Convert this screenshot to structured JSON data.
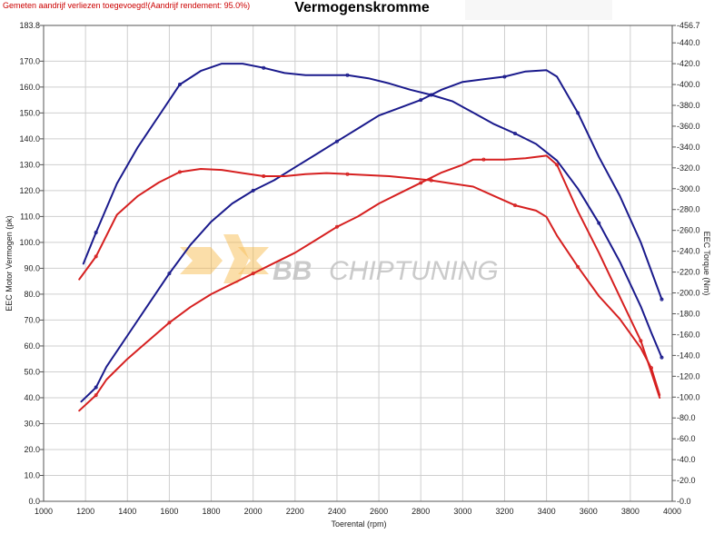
{
  "header": {
    "note": "Gemeten aandrijf verliezen toegevoegd!(Aandrijf rendement: 95.0%)",
    "title": "Vermogenskromme"
  },
  "watermark": {
    "brand_bold": "BB",
    "brand_light": "CHIPTUNING"
  },
  "colors": {
    "tuned": "#1a1a8c",
    "stock": "#d62020",
    "grid": "#cfcfcf",
    "watermark": "#f5b53c"
  },
  "chart_data": {
    "type": "line",
    "title": "Vermogenskromme",
    "xlabel": "Toerental (rpm)",
    "ylabel_left": "EEC Motor Vermogen (pk)",
    "ylabel_right": "EEC Torque (Nm)",
    "xlim": [
      1000,
      4000
    ],
    "ylim_left": [
      0,
      183.8
    ],
    "ylim_right": [
      0,
      456.7
    ],
    "grid": true,
    "x_ticks": [
      "1000",
      "1200",
      "1400",
      "1600",
      "1800",
      "2000",
      "2200",
      "2400",
      "2600",
      "2800",
      "3000",
      "3200",
      "3400",
      "3600",
      "3800",
      "4000"
    ],
    "y_left_ticks": [
      "0.0",
      "10.0",
      "20.0",
      "30.0",
      "40.0",
      "50.0",
      "60.0",
      "70.0",
      "80.0",
      "90.0",
      "100.0",
      "110.0",
      "120.0",
      "130.0",
      "140.0",
      "150.0",
      "160.0",
      "170.0",
      "183.8"
    ],
    "y_right_ticks": [
      "0.0",
      "20.0",
      "40.0",
      "60.0",
      "80.0",
      "100.0",
      "120.0",
      "140.0",
      "160.0",
      "180.0",
      "200.0",
      "220.0",
      "240.0",
      "260.0",
      "280.0",
      "300.0",
      "320.0",
      "340.0",
      "360.0",
      "380.0",
      "400.0",
      "420.0",
      "440.0",
      "456.7"
    ],
    "series": [
      {
        "color": "#1a1a8c",
        "axis": "right",
        "points": [
          [
            1190,
            228
          ],
          [
            1250,
            258
          ],
          [
            1350,
            305
          ],
          [
            1450,
            340
          ],
          [
            1550,
            370
          ],
          [
            1650,
            400
          ],
          [
            1750,
            413
          ],
          [
            1850,
            420
          ],
          [
            1950,
            420
          ],
          [
            2050,
            416
          ],
          [
            2150,
            411
          ],
          [
            2250,
            409
          ],
          [
            2350,
            409
          ],
          [
            2450,
            409
          ],
          [
            2550,
            406
          ],
          [
            2650,
            401
          ],
          [
            2750,
            395
          ],
          [
            2850,
            390
          ],
          [
            2950,
            384
          ],
          [
            3050,
            373
          ],
          [
            3150,
            362
          ],
          [
            3250,
            353
          ],
          [
            3350,
            343
          ],
          [
            3450,
            327
          ],
          [
            3550,
            300
          ],
          [
            3650,
            267
          ],
          [
            3750,
            230
          ],
          [
            3850,
            187
          ],
          [
            3900,
            162
          ],
          [
            3950,
            138
          ]
        ]
      },
      {
        "color": "#1a1a8c",
        "axis": "left",
        "points": [
          [
            1180,
            38.5
          ],
          [
            1250,
            44
          ],
          [
            1300,
            52
          ],
          [
            1400,
            64
          ],
          [
            1500,
            76
          ],
          [
            1600,
            88
          ],
          [
            1700,
            99
          ],
          [
            1800,
            108
          ],
          [
            1900,
            115
          ],
          [
            2000,
            120
          ],
          [
            2100,
            124
          ],
          [
            2200,
            129
          ],
          [
            2300,
            134
          ],
          [
            2400,
            139
          ],
          [
            2500,
            144
          ],
          [
            2600,
            149
          ],
          [
            2700,
            152
          ],
          [
            2800,
            155
          ],
          [
            2900,
            159
          ],
          [
            3000,
            162
          ],
          [
            3100,
            163
          ],
          [
            3200,
            164
          ],
          [
            3300,
            166
          ],
          [
            3400,
            166.5
          ],
          [
            3450,
            164
          ],
          [
            3550,
            150
          ],
          [
            3650,
            133
          ],
          [
            3750,
            118
          ],
          [
            3850,
            100
          ],
          [
            3950,
            78
          ]
        ]
      },
      {
        "color": "#d62020",
        "axis": "right",
        "points": [
          [
            1170,
            213
          ],
          [
            1250,
            235
          ],
          [
            1350,
            275
          ],
          [
            1450,
            293
          ],
          [
            1550,
            306
          ],
          [
            1650,
            316
          ],
          [
            1750,
            319
          ],
          [
            1850,
            318
          ],
          [
            1950,
            315
          ],
          [
            2050,
            312
          ],
          [
            2150,
            312
          ],
          [
            2250,
            314
          ],
          [
            2350,
            315
          ],
          [
            2450,
            314
          ],
          [
            2550,
            313
          ],
          [
            2650,
            312
          ],
          [
            2750,
            310
          ],
          [
            2850,
            308
          ],
          [
            2950,
            305
          ],
          [
            3050,
            302
          ],
          [
            3150,
            293
          ],
          [
            3250,
            284
          ],
          [
            3350,
            279
          ],
          [
            3400,
            273
          ],
          [
            3450,
            255
          ],
          [
            3550,
            225
          ],
          [
            3650,
            197
          ],
          [
            3750,
            175
          ],
          [
            3850,
            147
          ],
          [
            3900,
            128
          ],
          [
            3940,
            102
          ]
        ]
      },
      {
        "color": "#d62020",
        "axis": "left",
        "points": [
          [
            1170,
            35
          ],
          [
            1250,
            41
          ],
          [
            1300,
            47
          ],
          [
            1400,
            55
          ],
          [
            1500,
            62
          ],
          [
            1600,
            69
          ],
          [
            1700,
            75
          ],
          [
            1800,
            80
          ],
          [
            1900,
            84
          ],
          [
            2000,
            88
          ],
          [
            2100,
            92
          ],
          [
            2200,
            96
          ],
          [
            2300,
            101
          ],
          [
            2400,
            106
          ],
          [
            2500,
            110
          ],
          [
            2600,
            115
          ],
          [
            2700,
            119
          ],
          [
            2800,
            123
          ],
          [
            2900,
            127
          ],
          [
            3000,
            130
          ],
          [
            3050,
            132
          ],
          [
            3100,
            132
          ],
          [
            3200,
            132
          ],
          [
            3300,
            132.5
          ],
          [
            3400,
            133.5
          ],
          [
            3450,
            130
          ],
          [
            3550,
            112
          ],
          [
            3650,
            96
          ],
          [
            3750,
            79
          ],
          [
            3850,
            62
          ],
          [
            3900,
            50
          ],
          [
            3940,
            40
          ]
        ]
      }
    ]
  }
}
